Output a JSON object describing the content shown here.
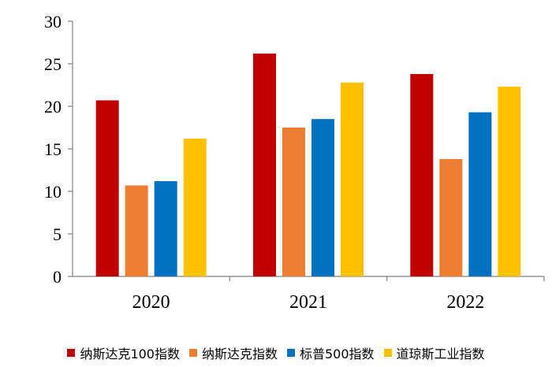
{
  "chart_data": {
    "type": "bar",
    "categories": [
      "2020",
      "2021",
      "2022"
    ],
    "series": [
      {
        "name": "纳斯达克100指数",
        "color": "#C00000",
        "values": [
          20.7,
          26.2,
          23.8
        ]
      },
      {
        "name": "纳斯达克指数",
        "color": "#ED7D31",
        "values": [
          10.7,
          17.5,
          13.8
        ]
      },
      {
        "name": "标普500指数",
        "color": "#0070C0",
        "values": [
          11.2,
          18.5,
          19.3
        ]
      },
      {
        "name": "道琼斯工业指数",
        "color": "#FFC000",
        "values": [
          16.2,
          22.8,
          22.3
        ]
      }
    ],
    "ylim": [
      0,
      30
    ],
    "yticks": [
      "0",
      "5",
      "10",
      "15",
      "20",
      "25",
      "30"
    ],
    "grid": false,
    "legend": "bottom"
  }
}
